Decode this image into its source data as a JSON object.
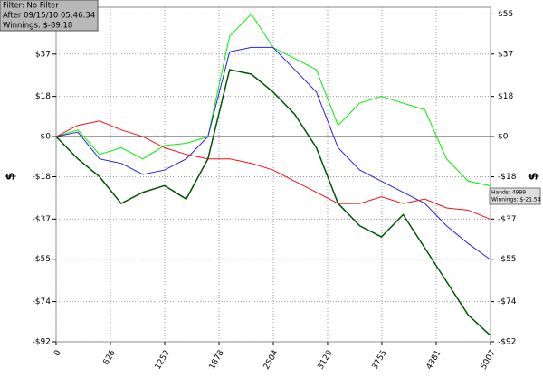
{
  "chart_data": {
    "type": "line",
    "info": [
      "Filter: No Filter",
      "After 09/15/10 05:46:34",
      "Winnings: $-89.18"
    ],
    "annotation": [
      "Hands: 4999",
      "Winnings: $-21.54"
    ],
    "ylabel": "$",
    "y2label": "$",
    "x": [
      0,
      250,
      500,
      750,
      1000,
      1250,
      1500,
      1750,
      2000,
      2250,
      2500,
      2750,
      3000,
      3250,
      3500,
      3750,
      4000,
      4250,
      4500,
      4750,
      5000
    ],
    "series": [
      {
        "color": "#00ee00",
        "values": [
          0,
          3,
          -8,
          -5,
          -10,
          -4,
          -3,
          0,
          45,
          55,
          40,
          35,
          30,
          5,
          15,
          18,
          15,
          12,
          -10,
          -20,
          -22
        ]
      },
      {
        "color": "#2222dd",
        "values": [
          0,
          2,
          -10,
          -12,
          -17,
          -15,
          -10,
          0,
          38,
          40,
          40,
          30,
          20,
          -5,
          -15,
          -20,
          -25,
          -30,
          -40,
          -48,
          -55
        ]
      },
      {
        "color": "#ee1111",
        "values": [
          0,
          5,
          7,
          3,
          0,
          -5,
          -8,
          -10,
          -10,
          -12,
          -15,
          -20,
          -25,
          -30,
          -30,
          -27,
          -30,
          -28,
          -32,
          -33,
          -37
        ]
      },
      {
        "color": "#005500",
        "values": [
          0,
          -10,
          -18,
          -30,
          -25,
          -22,
          -28,
          -10,
          30,
          28,
          20,
          10,
          -5,
          -30,
          -40,
          -45,
          -35,
          -50,
          -65,
          -80,
          -89
        ]
      }
    ],
    "xlim": [
      0,
      5007
    ],
    "xticks": [
      0,
      626,
      1252,
      1878,
      2504,
      3129,
      3755,
      4381,
      5007
    ],
    "ylim": [
      -92,
      58
    ],
    "yticks": [
      {
        "value": 55,
        "label": "$55"
      },
      {
        "value": 37,
        "label": "$37"
      },
      {
        "value": 18,
        "label": "$18"
      },
      {
        "value": 0,
        "label": "$0"
      },
      {
        "value": -18,
        "label": "-$18"
      },
      {
        "value": -37,
        "label": "-$37"
      },
      {
        "value": -55,
        "label": "-$55"
      },
      {
        "value": -74,
        "label": "-$74"
      },
      {
        "value": -92,
        "label": "-$92"
      }
    ],
    "y2lim": [
      -92,
      58
    ],
    "y2ticks": [
      {
        "value": 55,
        "label": "$55"
      },
      {
        "value": 37,
        "label": "$37"
      },
      {
        "value": 18,
        "label": "$18"
      },
      {
        "value": 0,
        "label": "$0"
      },
      {
        "value": -18,
        "label": "-$18"
      },
      {
        "value": -37,
        "label": "-$37"
      },
      {
        "value": -55,
        "label": "-$55"
      },
      {
        "value": -74,
        "label": "-$74"
      },
      {
        "value": -92,
        "label": "-$92"
      }
    ],
    "grid": true
  }
}
